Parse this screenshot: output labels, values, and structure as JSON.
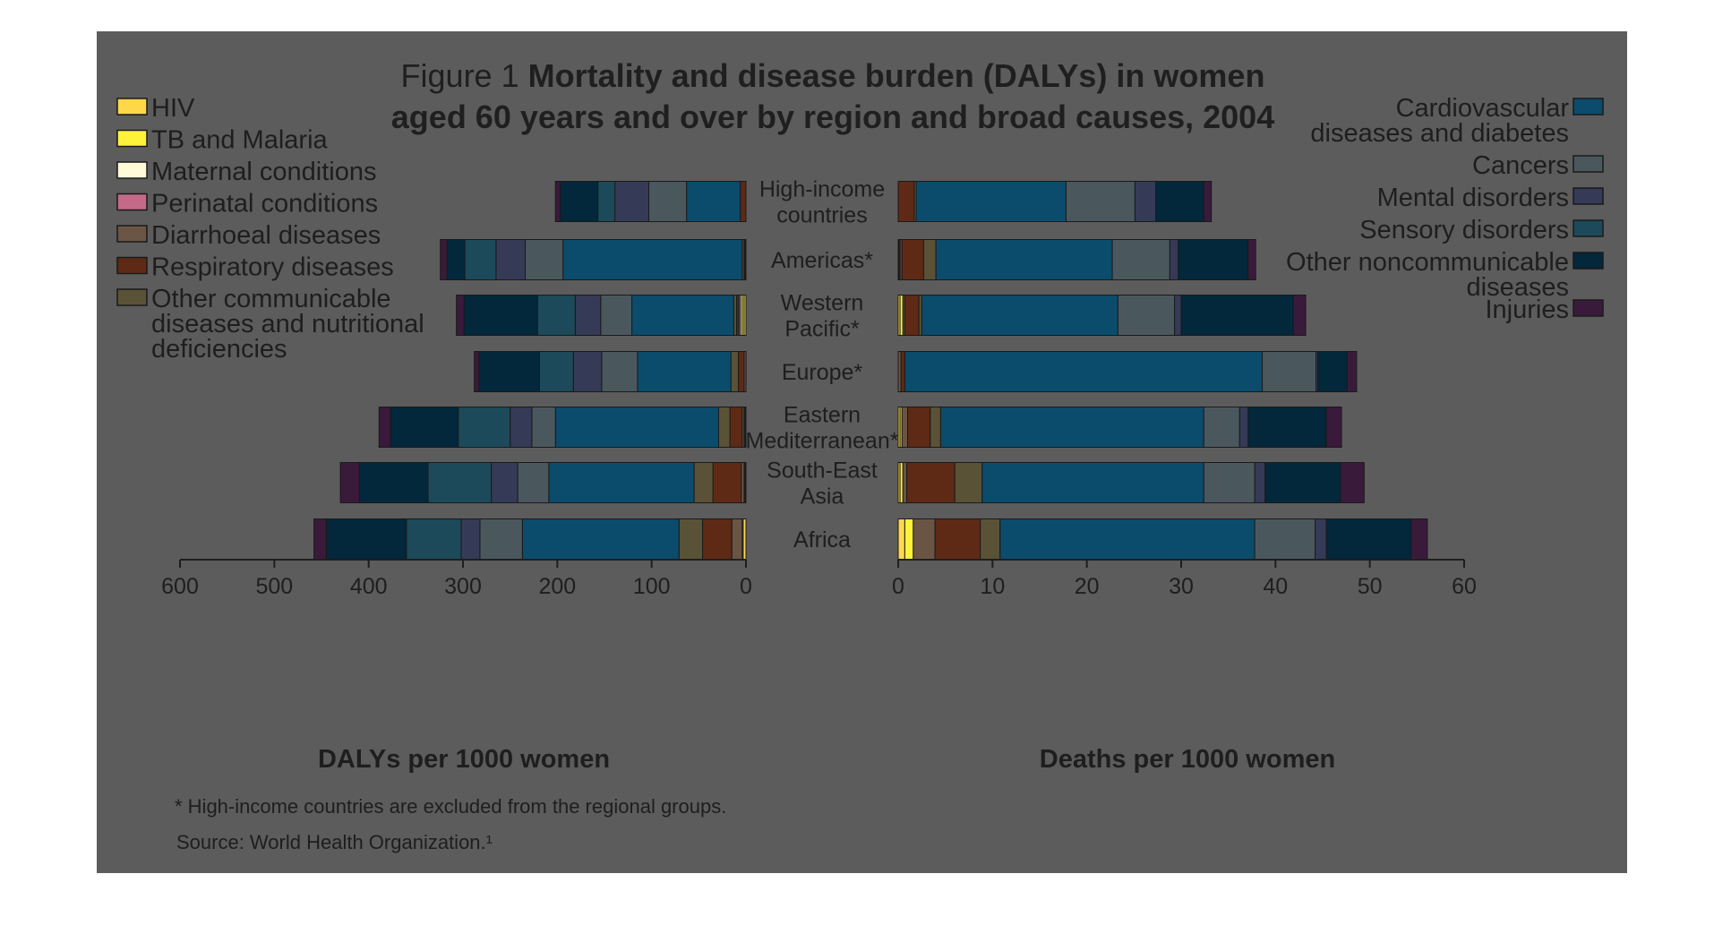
{
  "title": {
    "prefix": "Figure 1",
    "bold_line1": "Mortality and disease burden (DALYs) in women",
    "bold_line2": "aged 60 years and over by region and broad causes, 2004"
  },
  "colors": {
    "panel": "#5c5c5c",
    "text": "#1e1e1e"
  },
  "legend_left": [
    {
      "key": "hiv",
      "label_lines": [
        "HIV"
      ],
      "color": "#ffd84a"
    },
    {
      "key": "tb",
      "label_lines": [
        "TB and Malaria"
      ],
      "color": "#fff23a"
    },
    {
      "key": "maternal",
      "label_lines": [
        "Maternal conditions"
      ],
      "color": "#fffbd9"
    },
    {
      "key": "perinatal",
      "label_lines": [
        "Perinatal conditions"
      ],
      "color": "#c46a88"
    },
    {
      "key": "diarrhoeal",
      "label_lines": [
        "Diarrhoeal diseases"
      ],
      "color": "#6a5545"
    },
    {
      "key": "respiratory",
      "label_lines": [
        "Respiratory diseases"
      ],
      "color": "#5e2a15"
    },
    {
      "key": "othercomm",
      "label_lines": [
        "Other communicable",
        "diseases and nutritional",
        "deficiencies"
      ],
      "color": "#5a5236"
    }
  ],
  "legend_right": [
    {
      "key": "cvd",
      "label_lines": [
        "Cardiovascular",
        "diseases and diabetes"
      ],
      "color": "#0b4c6c"
    },
    {
      "key": "cancers",
      "label_lines": [
        "Cancers"
      ],
      "color": "#4a585e"
    },
    {
      "key": "mental",
      "label_lines": [
        "Mental disorders"
      ],
      "color": "#353a56"
    },
    {
      "key": "sensory",
      "label_lines": [
        "Sensory disorders"
      ],
      "color": "#1c4a5a"
    },
    {
      "key": "otherncd",
      "label_lines": [
        "Other noncommunicable",
        "diseases"
      ],
      "color": "#03273b"
    },
    {
      "key": "injuries",
      "label_lines": [
        "Injuries"
      ],
      "color": "#3a1a3a"
    }
  ],
  "axes": {
    "left_title": "DALYs per 1000 women",
    "right_title": "Deaths per 1000 women",
    "left_ticks": [
      "600",
      "500",
      "400",
      "300",
      "200",
      "100",
      "0"
    ],
    "right_ticks": [
      "0",
      "10",
      "20",
      "30",
      "40",
      "50",
      "60"
    ]
  },
  "footnotes": {
    "note": "* High-income countries are excluded from the regional groups.",
    "source": "Source: World Health Organization.¹"
  },
  "chart_data": [
    {
      "type": "bar",
      "orientation": "horizontal-stacked",
      "xlabel": "DALYs per 1000 women",
      "xlim": [
        0,
        600
      ],
      "categories": [
        [
          "High-income",
          "countries"
        ],
        [
          "Americas*"
        ],
        [
          "Western",
          "Pacific*"
        ],
        [
          "Europe*"
        ],
        [
          "Eastern",
          "Mediterranean*"
        ],
        [
          "South-East",
          "Asia"
        ],
        [
          "Africa"
        ]
      ],
      "series": [
        {
          "name": "HIV",
          "values": [
            0,
            0,
            2,
            0,
            1,
            1,
            3
          ]
        },
        {
          "name": "TB and Malaria",
          "values": [
            0,
            0,
            2,
            0,
            1,
            1,
            1
          ]
        },
        {
          "name": "Maternal conditions",
          "values": [
            0,
            1,
            2,
            0,
            0,
            0,
            0
          ]
        },
        {
          "name": "Perinatal conditions",
          "values": [
            0,
            0,
            0,
            0,
            0,
            0,
            0
          ]
        },
        {
          "name": "Diarrhoeal diseases",
          "values": [
            0,
            1,
            2,
            2,
            2,
            3,
            11
          ]
        },
        {
          "name": "Respiratory diseases",
          "values": [
            6,
            0,
            2,
            6,
            13,
            30,
            31
          ]
        },
        {
          "name": "Other communicable",
          "values": [
            0,
            2,
            3,
            8,
            12,
            20,
            25
          ]
        },
        {
          "name": "Cardiovascular diseases and diabetes",
          "values": [
            57,
            190,
            108,
            99,
            173,
            154,
            166
          ]
        },
        {
          "name": "Cancers",
          "values": [
            40,
            40,
            33,
            38,
            25,
            33,
            45
          ]
        },
        {
          "name": "Mental disorders",
          "values": [
            36,
            31,
            27,
            30,
            23,
            28,
            20
          ]
        },
        {
          "name": "Sensory disorders",
          "values": [
            18,
            33,
            40,
            36,
            55,
            67,
            58
          ]
        },
        {
          "name": "Other noncommunicable diseases",
          "values": [
            40,
            19,
            78,
            64,
            72,
            73,
            85
          ]
        },
        {
          "name": "Injuries",
          "values": [
            5,
            7,
            8,
            5,
            12,
            20,
            13
          ]
        }
      ]
    },
    {
      "type": "bar",
      "orientation": "horizontal-stacked",
      "xlabel": "Deaths per 1000 women",
      "xlim": [
        0,
        60
      ],
      "categories": [
        [
          "High-income",
          "countries"
        ],
        [
          "Americas*"
        ],
        [
          "Western",
          "Pacific*"
        ],
        [
          "Europe*"
        ],
        [
          "Eastern",
          "Mediterranean*"
        ],
        [
          "South-East",
          "Asia"
        ],
        [
          "Africa"
        ]
      ],
      "series": [
        {
          "name": "HIV",
          "values": [
            0,
            0.1,
            0.2,
            0,
            0.2,
            0.2,
            0.7
          ]
        },
        {
          "name": "TB and Malaria",
          "values": [
            0,
            0.1,
            0.3,
            0,
            0.2,
            0.3,
            0.9
          ]
        },
        {
          "name": "Maternal conditions",
          "values": [
            0,
            0,
            0,
            0,
            0,
            0,
            0
          ]
        },
        {
          "name": "Perinatal conditions",
          "values": [
            0,
            0,
            0,
            0,
            0,
            0,
            0
          ]
        },
        {
          "name": "Diarrhoeal diseases",
          "values": [
            0,
            0.2,
            0.2,
            0.3,
            0.6,
            0.4,
            2.3
          ]
        },
        {
          "name": "Respiratory diseases",
          "values": [
            1.7,
            2.3,
            1.5,
            0.4,
            2.4,
            5.1,
            4.8
          ]
        },
        {
          "name": "Other communicable",
          "values": [
            0.2,
            1.3,
            0.3,
            0,
            1.1,
            2.9,
            2.1
          ]
        },
        {
          "name": "Cardiovascular diseases and diabetes",
          "values": [
            15.9,
            18.7,
            20.8,
            37.9,
            27.9,
            23.5,
            27.0
          ]
        },
        {
          "name": "Cancers",
          "values": [
            7.3,
            6.1,
            6.0,
            5.7,
            3.8,
            5.4,
            6.4
          ]
        },
        {
          "name": "Mental disorders",
          "values": [
            2.2,
            0.9,
            0.7,
            0.2,
            0.9,
            1.1,
            1.2
          ]
        },
        {
          "name": "Sensory disorders",
          "values": [
            0,
            0,
            0,
            0,
            0,
            0,
            0
          ]
        },
        {
          "name": "Other noncommunicable diseases",
          "values": [
            5.1,
            7.4,
            11.9,
            3.1,
            8.3,
            8.0,
            9.0
          ]
        },
        {
          "name": "Injuries",
          "values": [
            0.8,
            0.8,
            1.3,
            1.0,
            1.6,
            2.5,
            1.7
          ]
        }
      ]
    }
  ]
}
